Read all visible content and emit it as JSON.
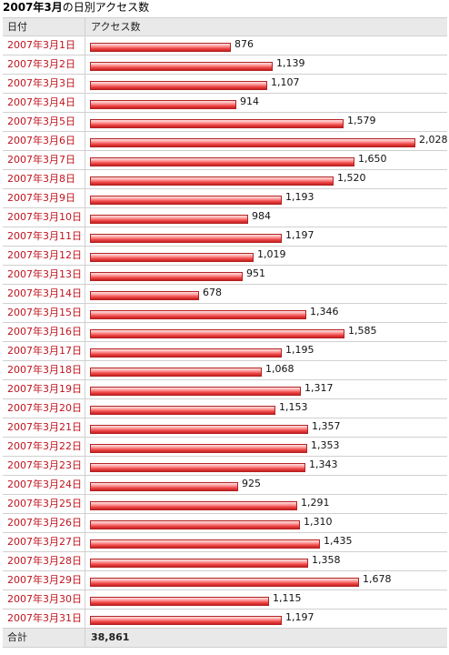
{
  "title": {
    "prefix": "2007年3月",
    "suffix": "の日別アクセス数"
  },
  "table": {
    "header_date": "日付",
    "header_access": "アクセス数",
    "total_label": "合計",
    "total_value": "38,861"
  },
  "colors": {
    "date_text": "#c0141e",
    "bar": "#e84848",
    "header_bg": "#e9e9e9"
  },
  "chart_data": {
    "type": "bar",
    "orientation": "horizontal",
    "categories": [
      "2007年3月1日",
      "2007年3月2日",
      "2007年3月3日",
      "2007年3月4日",
      "2007年3月5日",
      "2007年3月6日",
      "2007年3月7日",
      "2007年3月8日",
      "2007年3月9日",
      "2007年3月10日",
      "2007年3月11日",
      "2007年3月12日",
      "2007年3月13日",
      "2007年3月14日",
      "2007年3月15日",
      "2007年3月16日",
      "2007年3月17日",
      "2007年3月18日",
      "2007年3月19日",
      "2007年3月20日",
      "2007年3月21日",
      "2007年3月22日",
      "2007年3月23日",
      "2007年3月24日",
      "2007年3月25日",
      "2007年3月26日",
      "2007年3月27日",
      "2007年3月28日",
      "2007年3月29日",
      "2007年3月30日",
      "2007年3月31日"
    ],
    "values": [
      876,
      1139,
      1107,
      914,
      1579,
      2028,
      1650,
      1520,
      1193,
      984,
      1197,
      1019,
      951,
      678,
      1346,
      1585,
      1195,
      1068,
      1317,
      1153,
      1357,
      1353,
      1343,
      925,
      1291,
      1310,
      1435,
      1358,
      1678,
      1115,
      1197
    ],
    "labels": [
      "876",
      "1,139",
      "1,107",
      "914",
      "1,579",
      "2,028",
      "1,650",
      "1,520",
      "1,193",
      "984",
      "1,197",
      "1,019",
      "951",
      "678",
      "1,346",
      "1,585",
      "1,195",
      "1,068",
      "1,317",
      "1,153",
      "1,357",
      "1,353",
      "1,343",
      "925",
      "1,291",
      "1,310",
      "1,435",
      "1,358",
      "1,678",
      "1,115",
      "1,197"
    ]
  }
}
